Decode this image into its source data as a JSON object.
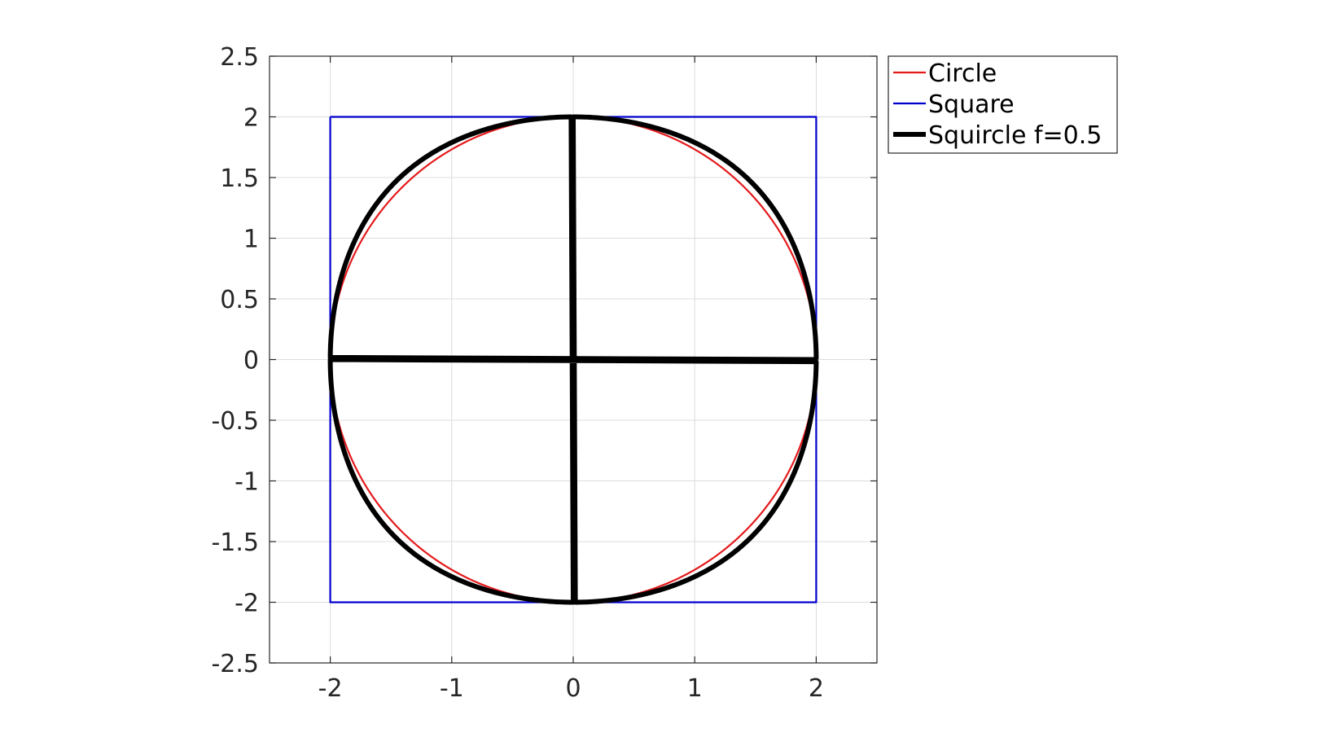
{
  "chart_data": {
    "type": "line",
    "title": "",
    "xlabel": "",
    "ylabel": "",
    "xlim": [
      -2.5,
      2.5
    ],
    "ylim": [
      -2.5,
      2.5
    ],
    "xticks": [
      -2,
      -1,
      0,
      1,
      2
    ],
    "xtick_labels": [
      "-2",
      "-1",
      "0",
      "1",
      "2"
    ],
    "yticks": [
      2.5,
      2,
      1.5,
      1,
      0.5,
      0,
      -0.5,
      -1,
      -1.5,
      -2,
      -2.5
    ],
    "ytick_labels": [
      "2.5",
      "2",
      "1.5",
      "1",
      "0.5",
      "0",
      "-0.5",
      "-1",
      "-1.5",
      "-2",
      "-2.5"
    ],
    "grid": true,
    "box": true,
    "legend_position": "outside-top-right",
    "series": [
      {
        "name": "Circle",
        "color": "#e41a1c",
        "shape": "circle",
        "radius": 2,
        "line_weight": "thin"
      },
      {
        "name": "Square",
        "color": "#0000cd",
        "shape": "square",
        "x": [
          -2,
          2,
          2,
          -2,
          -2
        ],
        "y": [
          2,
          2,
          -2,
          -2,
          2
        ],
        "line_weight": "thin"
      },
      {
        "name": "Squircle f=0.5",
        "color": "#000000",
        "shape": "squircle",
        "radius": 2,
        "f": 0.5,
        "line_weight": "thick"
      }
    ]
  }
}
